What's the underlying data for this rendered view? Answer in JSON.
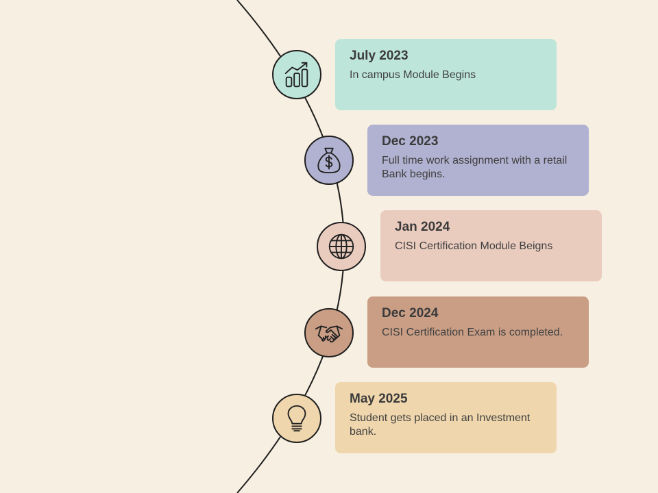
{
  "timeline": {
    "milestones": [
      {
        "id": "m1",
        "date": "July 2023",
        "description": "In campus Module Begins",
        "icon": "growth-chart-icon",
        "color": "#bde5da"
      },
      {
        "id": "m2",
        "date": "Dec 2023",
        "description": "Full time work assignment with a retail Bank begins.",
        "icon": "money-bag-icon",
        "color": "#b1b1d1"
      },
      {
        "id": "m3",
        "date": "Jan 2024",
        "description": "CISI Certification Module Beigns",
        "icon": "globe-icon",
        "color": "#eaccbf"
      },
      {
        "id": "m4",
        "date": "Dec 2024",
        "description": "CISI Certification Exam is completed.",
        "icon": "handshake-icon",
        "color": "#c99e85"
      },
      {
        "id": "m5",
        "date": "May 2025",
        "description": "Student gets placed in an Investment bank.",
        "icon": "lightbulb-icon",
        "color": "#efd6ad"
      }
    ]
  }
}
